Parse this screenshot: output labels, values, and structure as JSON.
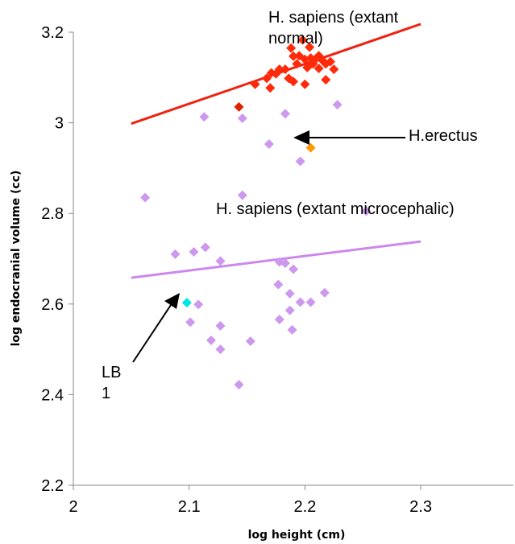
{
  "chart_data": {
    "type": "scatter",
    "xlabel": "log height (cm)",
    "ylabel": "log endocranial volume (cc)",
    "xlim": [
      2,
      2.38
    ],
    "ylim": [
      2.2,
      3.2
    ],
    "xticks": [
      "2",
      "2.1",
      "2.2",
      "2.3"
    ],
    "xtick_values": [
      2,
      2.1,
      2.2,
      2.3
    ],
    "yticks": [
      "2.2",
      "2.4",
      "2.6",
      "2.8",
      "3",
      "3.2"
    ],
    "ytick_values": [
      2.2,
      2.4,
      2.6,
      2.8,
      3.0,
      3.2
    ],
    "grid": false,
    "legend": "none",
    "series": [
      {
        "color": "#ff2a0a",
        "points": [
          [
            2.198,
            3.183
          ],
          [
            2.204,
            3.167
          ],
          [
            2.188,
            3.165
          ],
          [
            2.19,
            3.147
          ],
          [
            2.195,
            3.148
          ],
          [
            2.2,
            3.14
          ],
          [
            2.205,
            3.143
          ],
          [
            2.21,
            3.143
          ],
          [
            2.215,
            3.138
          ],
          [
            2.222,
            3.135
          ],
          [
            2.207,
            3.13
          ],
          [
            2.202,
            3.122
          ],
          [
            2.212,
            3.12
          ],
          [
            2.218,
            3.13
          ],
          [
            2.193,
            3.13
          ],
          [
            2.183,
            3.118
          ],
          [
            2.178,
            3.118
          ],
          [
            2.175,
            3.108
          ],
          [
            2.171,
            3.11
          ],
          [
            2.167,
            3.098
          ],
          [
            2.186,
            3.098
          ],
          [
            2.225,
            3.118
          ],
          [
            2.19,
            3.091
          ],
          [
            2.2,
            3.085
          ],
          [
            2.218,
            3.095
          ],
          [
            2.157,
            3.085
          ],
          [
            2.17,
            3.077
          ],
          [
            2.212,
            3.148
          ],
          [
            2.208,
            3.138
          ]
        ]
      },
      {
        "color": "#dd2200",
        "points": [
          [
            2.143,
            3.035
          ]
        ]
      },
      {
        "color": "#cc99ee",
        "points": [
          [
            2.113,
            3.013
          ],
          [
            2.146,
            3.01
          ],
          [
            2.183,
            3.02
          ],
          [
            2.228,
            3.04
          ],
          [
            2.169,
            2.953
          ],
          [
            2.196,
            2.915
          ],
          [
            2.062,
            2.835
          ],
          [
            2.146,
            2.84
          ],
          [
            2.253,
            2.805
          ],
          [
            2.088,
            2.71
          ],
          [
            2.104,
            2.715
          ],
          [
            2.114,
            2.725
          ],
          [
            2.127,
            2.695
          ],
          [
            2.178,
            2.693
          ],
          [
            2.183,
            2.69
          ],
          [
            2.19,
            2.677
          ],
          [
            2.177,
            2.643
          ],
          [
            2.187,
            2.623
          ],
          [
            2.217,
            2.625
          ],
          [
            2.196,
            2.604
          ],
          [
            2.205,
            2.604
          ],
          [
            2.108,
            2.599
          ],
          [
            2.187,
            2.586
          ],
          [
            2.178,
            2.566
          ],
          [
            2.101,
            2.56
          ],
          [
            2.189,
            2.543
          ],
          [
            2.127,
            2.552
          ],
          [
            2.119,
            2.52
          ],
          [
            2.153,
            2.518
          ],
          [
            2.127,
            2.5
          ],
          [
            2.143,
            2.422
          ]
        ]
      },
      {
        "color": "#ff9900",
        "points": [
          [
            2.205,
            2.945
          ]
        ]
      },
      {
        "color": "#00e5e5",
        "points": [
          [
            2.098,
            2.603
          ]
        ]
      }
    ],
    "trendlines": [
      {
        "color": "#ee2211",
        "from": [
          2.05,
          2.998
        ],
        "to": [
          2.3,
          3.218
        ]
      },
      {
        "color": "#cc88ee",
        "from": [
          2.05,
          2.658
        ],
        "to": [
          2.3,
          2.738
        ]
      }
    ],
    "annotations": [
      {
        "id": "sapiens-normal",
        "lines": [
          "H. sapiens (extant",
          "normal)"
        ]
      },
      {
        "id": "erectus",
        "lines": [
          "H.erectus"
        ]
      },
      {
        "id": "microcephalic",
        "lines": [
          "H. sapiens (extant microcephalic)"
        ]
      },
      {
        "id": "lb1",
        "lines": [
          "LB",
          "1"
        ]
      }
    ]
  }
}
